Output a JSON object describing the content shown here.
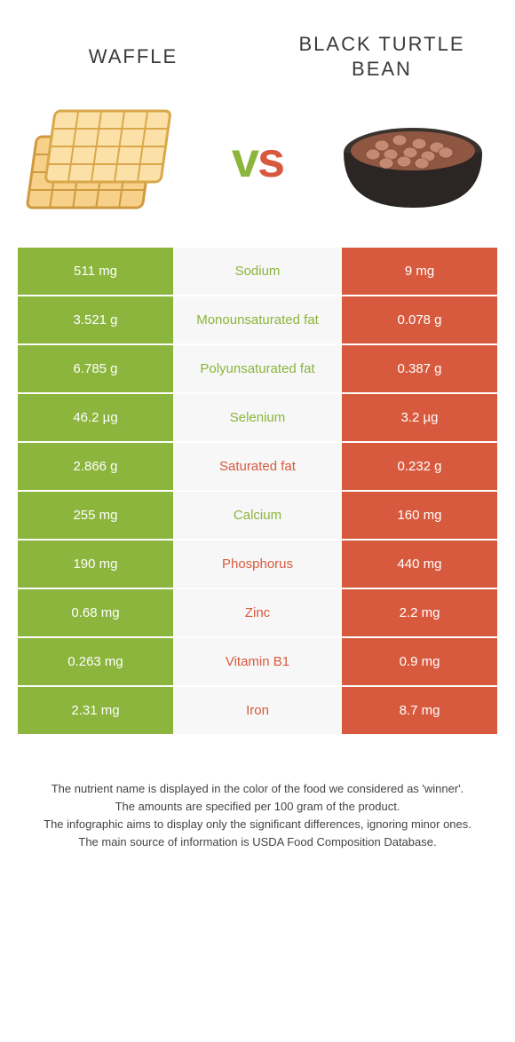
{
  "header": {
    "left_title": "Waffle",
    "right_title": "Black Turtle Bean"
  },
  "vs": {
    "text": "vs",
    "v_color": "#8bb53c",
    "s_color": "#d85a3e"
  },
  "colors": {
    "left_bg": "#8bb53c",
    "right_bg": "#d85a3e",
    "mid_bg": "#f7f7f7",
    "side_text": "#ffffff"
  },
  "rows": [
    {
      "nutrient": "Sodium",
      "left": "511 mg",
      "right": "9 mg",
      "winner": "left"
    },
    {
      "nutrient": "Monounsaturated fat",
      "left": "3.521 g",
      "right": "0.078 g",
      "winner": "left"
    },
    {
      "nutrient": "Polyunsaturated fat",
      "left": "6.785 g",
      "right": "0.387 g",
      "winner": "left"
    },
    {
      "nutrient": "Selenium",
      "left": "46.2 µg",
      "right": "3.2 µg",
      "winner": "left"
    },
    {
      "nutrient": "Saturated fat",
      "left": "2.866 g",
      "right": "0.232 g",
      "winner": "right"
    },
    {
      "nutrient": "Calcium",
      "left": "255 mg",
      "right": "160 mg",
      "winner": "left"
    },
    {
      "nutrient": "Phosphorus",
      "left": "190 mg",
      "right": "440 mg",
      "winner": "right"
    },
    {
      "nutrient": "Zinc",
      "left": "0.68 mg",
      "right": "2.2 mg",
      "winner": "right"
    },
    {
      "nutrient": "Vitamin B1",
      "left": "0.263 mg",
      "right": "0.9 mg",
      "winner": "right"
    },
    {
      "nutrient": "Iron",
      "left": "2.31 mg",
      "right": "8.7 mg",
      "winner": "right"
    }
  ],
  "footer": {
    "line1": "The nutrient name is displayed in the color of the food we considered as 'winner'.",
    "line2": "The amounts are specified per 100 gram of the product.",
    "line3": "The infographic aims to display only the significant differences, ignoring minor ones.",
    "line4": "The main source of information is USDA Food Composition Database."
  }
}
